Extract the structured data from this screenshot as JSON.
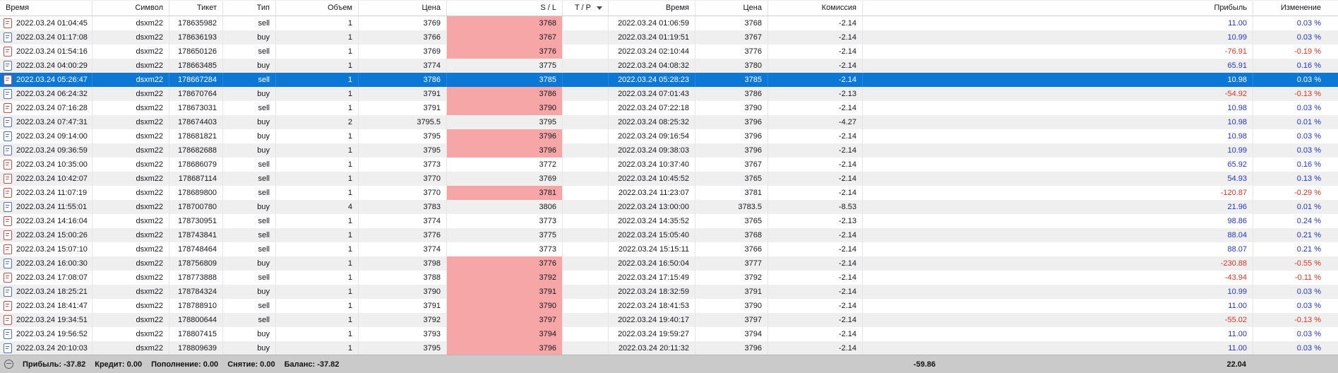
{
  "columns": [
    {
      "key": "time_open",
      "label": "Время"
    },
    {
      "key": "symbol",
      "label": "Символ"
    },
    {
      "key": "ticket",
      "label": "Тикет"
    },
    {
      "key": "type",
      "label": "Тип"
    },
    {
      "key": "volume",
      "label": "Объем"
    },
    {
      "key": "price_open",
      "label": "Цена"
    },
    {
      "key": "sl",
      "label": "S / L"
    },
    {
      "key": "tp",
      "label": "T / P",
      "sort_indicator": true
    },
    {
      "key": "time_close",
      "label": "Время"
    },
    {
      "key": "price_close",
      "label": "Цена"
    },
    {
      "key": "commission",
      "label": "Комиссия"
    },
    {
      "key": "profit",
      "label": "Прибыль"
    },
    {
      "key": "change",
      "label": "Изменение"
    }
  ],
  "rows": [
    {
      "time_open": "2022.03.24 01:04:45",
      "symbol": "dsxm22",
      "ticket": "178635982",
      "type": "sell",
      "volume": "1",
      "price_open": "3769",
      "sl": "3768",
      "sl_flagged": true,
      "tp": "",
      "time_close": "2022.03.24 01:06:59",
      "price_close": "3768",
      "commission": "-2.14",
      "profit": "11.00",
      "change": "0.03 %",
      "selected": false
    },
    {
      "time_open": "2022.03.24 01:17:08",
      "symbol": "dsxm22",
      "ticket": "178636193",
      "type": "buy",
      "volume": "1",
      "price_open": "3766",
      "sl": "3767",
      "sl_flagged": true,
      "tp": "",
      "time_close": "2022.03.24 01:19:51",
      "price_close": "3767",
      "commission": "-2.14",
      "profit": "10.99",
      "change": "0.03 %",
      "selected": false
    },
    {
      "time_open": "2022.03.24 01:54:16",
      "symbol": "dsxm22",
      "ticket": "178650126",
      "type": "sell",
      "volume": "1",
      "price_open": "3769",
      "sl": "3776",
      "sl_flagged": true,
      "tp": "",
      "time_close": "2022.03.24 02:10:44",
      "price_close": "3776",
      "commission": "-2.14",
      "profit": "-76.91",
      "change": "-0.19 %",
      "selected": false
    },
    {
      "time_open": "2022.03.24 04:00:29",
      "symbol": "dsxm22",
      "ticket": "178663485",
      "type": "buy",
      "volume": "1",
      "price_open": "3774",
      "sl": "3775",
      "sl_flagged": false,
      "tp": "",
      "time_close": "2022.03.24 04:08:32",
      "price_close": "3780",
      "commission": "-2.14",
      "profit": "65.91",
      "change": "0.16 %",
      "selected": false
    },
    {
      "time_open": "2022.03.24 05:26:47",
      "symbol": "dsxm22",
      "ticket": "178667284",
      "type": "sell",
      "volume": "1",
      "price_open": "3786",
      "sl": "3785",
      "sl_flagged": false,
      "tp": "",
      "time_close": "2022.03.24 05:28:23",
      "price_close": "3785",
      "commission": "-2.14",
      "profit": "10.98",
      "change": "0.03 %",
      "selected": true
    },
    {
      "time_open": "2022.03.24 06:24:32",
      "symbol": "dsxm22",
      "ticket": "178670764",
      "type": "buy",
      "volume": "1",
      "price_open": "3791",
      "sl": "3786",
      "sl_flagged": true,
      "tp": "",
      "time_close": "2022.03.24 07:01:43",
      "price_close": "3786",
      "commission": "-2.13",
      "profit": "-54.92",
      "change": "-0.13 %",
      "selected": false
    },
    {
      "time_open": "2022.03.24 07:16:28",
      "symbol": "dsxm22",
      "ticket": "178673031",
      "type": "sell",
      "volume": "1",
      "price_open": "3791",
      "sl": "3790",
      "sl_flagged": true,
      "tp": "",
      "time_close": "2022.03.24 07:22:18",
      "price_close": "3790",
      "commission": "-2.14",
      "profit": "10.98",
      "change": "0.03 %",
      "selected": false
    },
    {
      "time_open": "2022.03.24 07:47:31",
      "symbol": "dsxm22",
      "ticket": "178674403",
      "type": "buy",
      "volume": "2",
      "price_open": "3795.5",
      "sl": "3795",
      "sl_flagged": false,
      "tp": "",
      "time_close": "2022.03.24 08:25:32",
      "price_close": "3796",
      "commission": "-4.27",
      "profit": "10.98",
      "change": "0.01 %",
      "selected": false
    },
    {
      "time_open": "2022.03.24 09:14:00",
      "symbol": "dsxm22",
      "ticket": "178681821",
      "type": "buy",
      "volume": "1",
      "price_open": "3795",
      "sl": "3796",
      "sl_flagged": true,
      "tp": "",
      "time_close": "2022.03.24 09:16:54",
      "price_close": "3796",
      "commission": "-2.14",
      "profit": "10.98",
      "change": "0.03 %",
      "selected": false
    },
    {
      "time_open": "2022.03.24 09:36:59",
      "symbol": "dsxm22",
      "ticket": "178682688",
      "type": "buy",
      "volume": "1",
      "price_open": "3795",
      "sl": "3796",
      "sl_flagged": true,
      "tp": "",
      "time_close": "2022.03.24 09:38:03",
      "price_close": "3796",
      "commission": "-2.14",
      "profit": "10.99",
      "change": "0.03 %",
      "selected": false
    },
    {
      "time_open": "2022.03.24 10:35:00",
      "symbol": "dsxm22",
      "ticket": "178686079",
      "type": "sell",
      "volume": "1",
      "price_open": "3773",
      "sl": "3772",
      "sl_flagged": false,
      "tp": "",
      "time_close": "2022.03.24 10:37:40",
      "price_close": "3767",
      "commission": "-2.14",
      "profit": "65.92",
      "change": "0.16 %",
      "selected": false
    },
    {
      "time_open": "2022.03.24 10:42:07",
      "symbol": "dsxm22",
      "ticket": "178687114",
      "type": "sell",
      "volume": "1",
      "price_open": "3770",
      "sl": "3769",
      "sl_flagged": false,
      "tp": "",
      "time_close": "2022.03.24 10:45:52",
      "price_close": "3765",
      "commission": "-2.14",
      "profit": "54.93",
      "change": "0.13 %",
      "selected": false
    },
    {
      "time_open": "2022.03.24 11:07:19",
      "symbol": "dsxm22",
      "ticket": "178689800",
      "type": "sell",
      "volume": "1",
      "price_open": "3770",
      "sl": "3781",
      "sl_flagged": true,
      "tp": "",
      "time_close": "2022.03.24 11:23:07",
      "price_close": "3781",
      "commission": "-2.14",
      "profit": "-120.87",
      "change": "-0.29 %",
      "selected": false
    },
    {
      "time_open": "2022.03.24 11:55:01",
      "symbol": "dsxm22",
      "ticket": "178700780",
      "type": "buy",
      "volume": "4",
      "price_open": "3783",
      "sl": "3806",
      "sl_flagged": false,
      "tp": "",
      "time_close": "2022.03.24 13:00:00",
      "price_close": "3783.5",
      "commission": "-8.53",
      "profit": "21.96",
      "change": "0.01 %",
      "selected": false
    },
    {
      "time_open": "2022.03.24 14:16:04",
      "symbol": "dsxm22",
      "ticket": "178730951",
      "type": "sell",
      "volume": "1",
      "price_open": "3774",
      "sl": "3773",
      "sl_flagged": false,
      "tp": "",
      "time_close": "2022.03.24 14:35:52",
      "price_close": "3765",
      "commission": "-2.13",
      "profit": "98.86",
      "change": "0.24 %",
      "selected": false
    },
    {
      "time_open": "2022.03.24 15:00:26",
      "symbol": "dsxm22",
      "ticket": "178743841",
      "type": "sell",
      "volume": "1",
      "price_open": "3776",
      "sl": "3775",
      "sl_flagged": false,
      "tp": "",
      "time_close": "2022.03.24 15:05:40",
      "price_close": "3768",
      "commission": "-2.14",
      "profit": "88.04",
      "change": "0.21 %",
      "selected": false
    },
    {
      "time_open": "2022.03.24 15:07:10",
      "symbol": "dsxm22",
      "ticket": "178748464",
      "type": "sell",
      "volume": "1",
      "price_open": "3774",
      "sl": "3773",
      "sl_flagged": false,
      "tp": "",
      "time_close": "2022.03.24 15:15:11",
      "price_close": "3766",
      "commission": "-2.14",
      "profit": "88.07",
      "change": "0.21 %",
      "selected": false
    },
    {
      "time_open": "2022.03.24 16:00:30",
      "symbol": "dsxm22",
      "ticket": "178756809",
      "type": "buy",
      "volume": "1",
      "price_open": "3798",
      "sl": "3776",
      "sl_flagged": true,
      "tp": "",
      "time_close": "2022.03.24 16:50:04",
      "price_close": "3777",
      "commission": "-2.14",
      "profit": "-230.88",
      "change": "-0.55 %",
      "selected": false
    },
    {
      "time_open": "2022.03.24 17:08:07",
      "symbol": "dsxm22",
      "ticket": "178773888",
      "type": "sell",
      "volume": "1",
      "price_open": "3788",
      "sl": "3792",
      "sl_flagged": true,
      "tp": "",
      "time_close": "2022.03.24 17:15:49",
      "price_close": "3792",
      "commission": "-2.14",
      "profit": "-43.94",
      "change": "-0.11 %",
      "selected": false
    },
    {
      "time_open": "2022.03.24 18:25:21",
      "symbol": "dsxm22",
      "ticket": "178784324",
      "type": "buy",
      "volume": "1",
      "price_open": "3790",
      "sl": "3791",
      "sl_flagged": true,
      "tp": "",
      "time_close": "2022.03.24 18:32:59",
      "price_close": "3791",
      "commission": "-2.14",
      "profit": "10.99",
      "change": "0.03 %",
      "selected": false
    },
    {
      "time_open": "2022.03.24 18:41:47",
      "symbol": "dsxm22",
      "ticket": "178788910",
      "type": "sell",
      "volume": "1",
      "price_open": "3791",
      "sl": "3790",
      "sl_flagged": true,
      "tp": "",
      "time_close": "2022.03.24 18:41:53",
      "price_close": "3790",
      "commission": "-2.14",
      "profit": "11.00",
      "change": "0.03 %",
      "selected": false
    },
    {
      "time_open": "2022.03.24 19:34:51",
      "symbol": "dsxm22",
      "ticket": "178800644",
      "type": "sell",
      "volume": "1",
      "price_open": "3792",
      "sl": "3797",
      "sl_flagged": true,
      "tp": "",
      "time_close": "2022.03.24 19:40:17",
      "price_close": "3797",
      "commission": "-2.14",
      "profit": "-55.02",
      "change": "-0.13 %",
      "selected": false
    },
    {
      "time_open": "2022.03.24 19:56:52",
      "symbol": "dsxm22",
      "ticket": "178807415",
      "type": "buy",
      "volume": "1",
      "price_open": "3793",
      "sl": "3794",
      "sl_flagged": true,
      "tp": "",
      "time_close": "2022.03.24 19:59:27",
      "price_close": "3794",
      "commission": "-2.14",
      "profit": "11.00",
      "change": "0.03 %",
      "selected": false
    },
    {
      "time_open": "2022.03.24 20:10:03",
      "symbol": "dsxm22",
      "ticket": "178809639",
      "type": "buy",
      "volume": "1",
      "price_open": "3795",
      "sl": "3796",
      "sl_flagged": true,
      "tp": "",
      "time_close": "2022.03.24 20:11:32",
      "price_close": "3796",
      "commission": "-2.14",
      "profit": "11.00",
      "change": "0.03 %",
      "selected": false
    }
  ],
  "statusbar": {
    "stats": [
      {
        "label": "Прибыль:",
        "value": "-37.82"
      },
      {
        "label": "Кредит:",
        "value": "0.00"
      },
      {
        "label": "Пополнение:",
        "value": "0.00"
      },
      {
        "label": "Снятие:",
        "value": "0.00"
      },
      {
        "label": "Баланс:",
        "value": "-37.82"
      }
    ],
    "total_commission": "-59.86",
    "total_profit": "22.04"
  },
  "colors": {
    "selection": "#0a78d4",
    "sl_highlight": "#f6a6a6",
    "positive": "#2233cc",
    "negative": "#dd3322",
    "row_stripe": "#efefef",
    "statusbar_bg": "#cacaca"
  }
}
